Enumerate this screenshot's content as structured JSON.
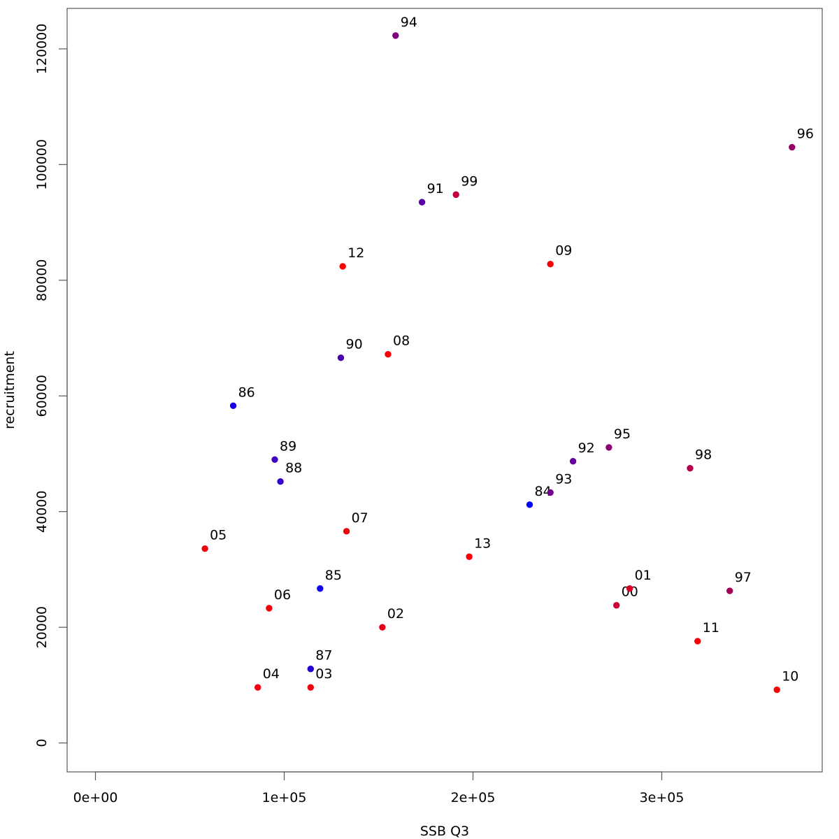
{
  "chart_data": {
    "type": "scatter",
    "title": "",
    "xlabel": "SSB Q3",
    "ylabel": "recruitment",
    "xlim": [
      -15000,
      385000
    ],
    "ylim": [
      -5000,
      127000
    ],
    "x_ticks": [
      0,
      100000,
      200000,
      300000
    ],
    "x_tick_labels": [
      "0e+00",
      "1e+05",
      "2e+05",
      "3e+05"
    ],
    "y_ticks": [
      0,
      20000,
      40000,
      60000,
      80000,
      100000,
      120000
    ],
    "y_tick_labels": [
      "0",
      "20000",
      "40000",
      "60000",
      "80000",
      "100000",
      "120000"
    ],
    "grid": false,
    "legend": "none",
    "color_gradient": {
      "start": "#0000ff",
      "end": "#ff0000"
    },
    "points": [
      {
        "label": "84",
        "x": 230000,
        "y": 41200,
        "color": "#0000ff"
      },
      {
        "label": "85",
        "x": 119000,
        "y": 26700,
        "color": "#0d00f2"
      },
      {
        "label": "86",
        "x": 73000,
        "y": 58300,
        "color": "#1a00e5"
      },
      {
        "label": "87",
        "x": 114000,
        "y": 12800,
        "color": "#2600d9"
      },
      {
        "label": "88",
        "x": 98000,
        "y": 45200,
        "color": "#3300cc"
      },
      {
        "label": "89",
        "x": 95000,
        "y": 49000,
        "color": "#4000bf"
      },
      {
        "label": "90",
        "x": 130000,
        "y": 66600,
        "color": "#4d00b2"
      },
      {
        "label": "91",
        "x": 173000,
        "y": 93500,
        "color": "#5900a6"
      },
      {
        "label": "92",
        "x": 253000,
        "y": 48700,
        "color": "#660099"
      },
      {
        "label": "93",
        "x": 241000,
        "y": 43300,
        "color": "#73008c"
      },
      {
        "label": "94",
        "x": 159000,
        "y": 122300,
        "color": "#800080"
      },
      {
        "label": "95",
        "x": 272000,
        "y": 51100,
        "color": "#8c0073"
      },
      {
        "label": "96",
        "x": 369000,
        "y": 103000,
        "color": "#990066"
      },
      {
        "label": "97",
        "x": 336000,
        "y": 26300,
        "color": "#a60059"
      },
      {
        "label": "98",
        "x": 315000,
        "y": 47500,
        "color": "#b2004d"
      },
      {
        "label": "99",
        "x": 191000,
        "y": 94800,
        "color": "#bf0040"
      },
      {
        "label": "00",
        "x": 276000,
        "y": 23800,
        "color": "#cc0033"
      },
      {
        "label": "01",
        "x": 283000,
        "y": 26700,
        "color": "#d90026"
      },
      {
        "label": "02",
        "x": 152000,
        "y": 20000,
        "color": "#e5001a"
      },
      {
        "label": "03",
        "x": 114000,
        "y": 9600,
        "color": "#f2000d"
      },
      {
        "label": "04",
        "x": 86000,
        "y": 9600,
        "color": "#f2000d"
      },
      {
        "label": "05",
        "x": 58000,
        "y": 33600,
        "color": "#f2000d"
      },
      {
        "label": "06",
        "x": 92000,
        "y": 23300,
        "color": "#f2000d"
      },
      {
        "label": "07",
        "x": 133000,
        "y": 36600,
        "color": "#f5000a"
      },
      {
        "label": "08",
        "x": 155000,
        "y": 67200,
        "color": "#f70008"
      },
      {
        "label": "09",
        "x": 241000,
        "y": 82800,
        "color": "#fa0005"
      },
      {
        "label": "10",
        "x": 361000,
        "y": 9200,
        "color": "#fc0003"
      },
      {
        "label": "11",
        "x": 319000,
        "y": 17600,
        "color": "#fd0002"
      },
      {
        "label": "12",
        "x": 131000,
        "y": 82400,
        "color": "#fe0001"
      },
      {
        "label": "13",
        "x": 198000,
        "y": 32200,
        "color": "#ff0000"
      }
    ]
  }
}
